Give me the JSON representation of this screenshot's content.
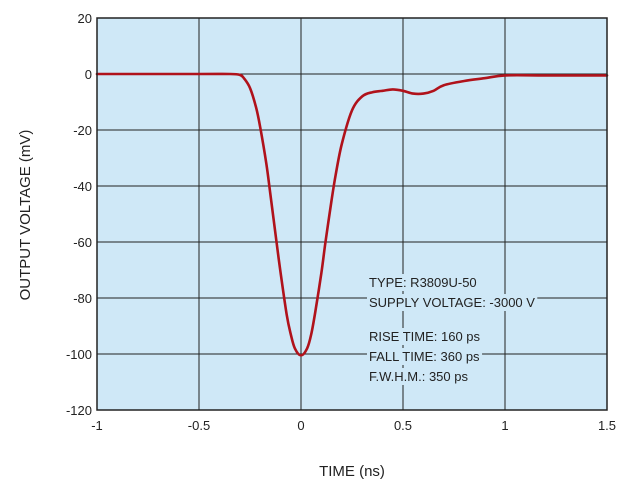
{
  "chart_data": {
    "type": "line",
    "title": "",
    "xlabel": "TIME (ns)",
    "ylabel": "OUTPUT VOLTAGE (mV)",
    "xlim": [
      -1,
      1.5
    ],
    "ylim": [
      -120,
      20
    ],
    "x_ticks": [
      -1,
      -0.5,
      0,
      0.5,
      1,
      1.5
    ],
    "x_tick_labels": [
      "-1",
      "-0.5",
      "0",
      "0.5",
      "1",
      "1.5"
    ],
    "y_ticks": [
      20,
      0,
      -20,
      -40,
      -60,
      -80,
      -100,
      -120
    ],
    "y_tick_labels": [
      "20",
      "0",
      "-20",
      "-40",
      "-60",
      "-80",
      "-100",
      "-120"
    ],
    "grid": true,
    "colors": {
      "plot_background": "#cfe8f7",
      "curve": "#b0121b",
      "grid": "#222222"
    },
    "series": [
      {
        "x": [
          -1.0,
          -0.5,
          -0.35,
          -0.3,
          -0.28,
          -0.25,
          -0.22,
          -0.2,
          -0.17,
          -0.15,
          -0.12,
          -0.1,
          -0.07,
          -0.05,
          -0.03,
          0.0,
          0.03,
          0.05,
          0.07,
          0.1,
          0.12,
          0.15,
          0.17,
          0.2,
          0.25,
          0.3,
          0.35,
          0.4,
          0.45,
          0.5,
          0.55,
          0.6,
          0.65,
          0.7,
          0.8,
          0.9,
          1.0,
          1.2,
          1.5
        ],
        "y": [
          0,
          0,
          0,
          -0.3,
          -1.5,
          -5,
          -12,
          -19,
          -32,
          -43,
          -60,
          -71,
          -86,
          -93,
          -98,
          -100.5,
          -98,
          -93,
          -85,
          -71,
          -60,
          -45,
          -36,
          -25,
          -13,
          -8,
          -6.5,
          -6,
          -5.5,
          -6,
          -7,
          -7,
          -6,
          -4,
          -2.5,
          -1.5,
          -0.5,
          -0.5,
          -0.5
        ]
      }
    ]
  },
  "annotation": {
    "line1": "TYPE: R3809U-50",
    "line2": "SUPPLY VOLTAGE: -3000 V",
    "line3": "RISE TIME: 160 ps",
    "line4": "FALL TIME: 360 ps",
    "line5": "F.W.H.M.: 350 ps"
  }
}
